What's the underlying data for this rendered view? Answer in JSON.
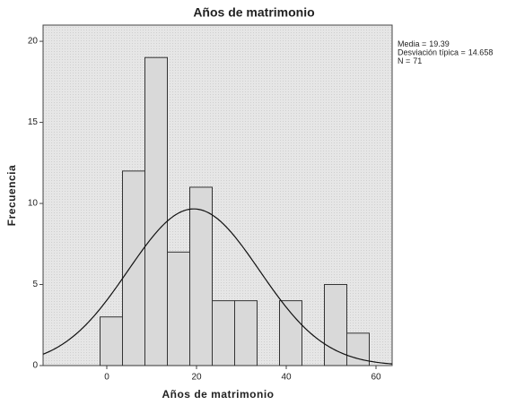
{
  "chart_data": {
    "type": "histogram",
    "title": "Años de matrimonio",
    "xlabel": "Años de matrimonio",
    "ylabel": "Frecuencia",
    "bins": [
      -1.5,
      3.5,
      8.5,
      13.5,
      18.5,
      23.5,
      28.5,
      33.5,
      38.5,
      43.5,
      48.5,
      53.5,
      58.5
    ],
    "values": [
      3,
      12,
      19,
      7,
      11,
      4,
      4,
      0,
      4,
      0,
      5,
      2
    ],
    "color": "#d9d9d9",
    "xlim": [
      -14.2,
      63.6
    ],
    "xticks": [
      0,
      20,
      40,
      60
    ],
    "ylim": [
      0,
      21
    ],
    "yticks": [
      0,
      5,
      10,
      15,
      20
    ],
    "stats": [
      {
        "label": "Media =",
        "value": 19.39
      },
      {
        "label": "Desviación típica =",
        "value": 14.658
      },
      {
        "label": "N =",
        "value": 71
      }
    ]
  }
}
